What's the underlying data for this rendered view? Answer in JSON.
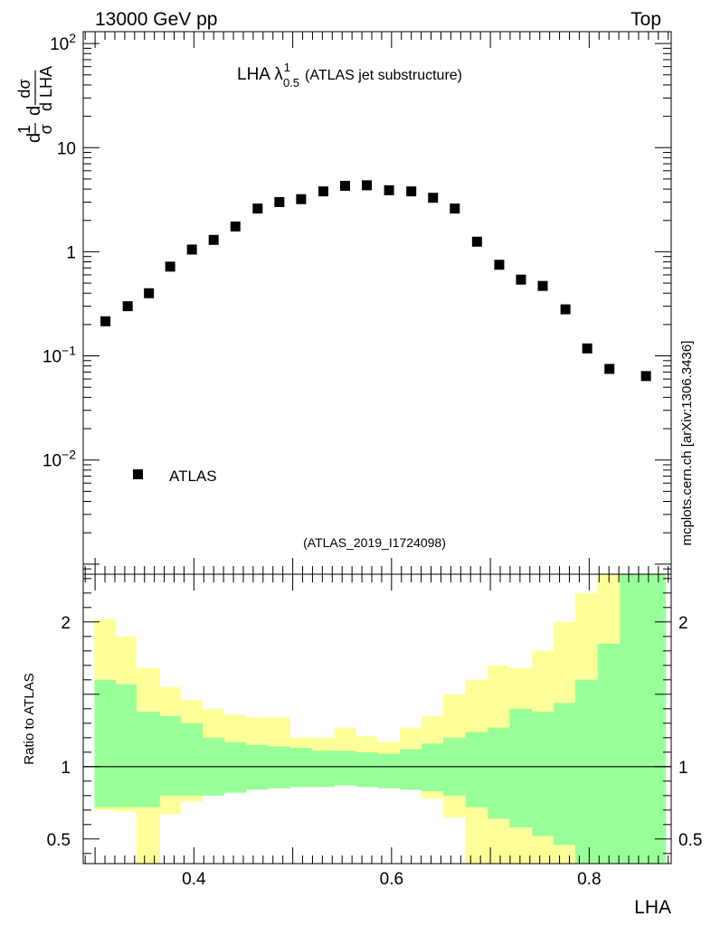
{
  "header": {
    "left_label": "13000 GeV pp",
    "right_label": "Top"
  },
  "side_label": "mcplots.cern.ch [arXiv:1306.3436]",
  "analysis_tag": "(ATLAS_2019_I1724098)",
  "colors": {
    "data_marker": "#000000",
    "band_outer": "#ffff99",
    "band_inner": "#99ff99",
    "tag_text": "#999999"
  },
  "chart_data": [
    {
      "type": "scatter",
      "title": {
        "main": "LHA λ",
        "superscript": "1",
        "subscript": "0.5",
        "suffix": "(ATLAS jet substructure)"
      },
      "ylabel": {
        "frac1_num": "1",
        "frac1_den": "σ",
        "frac2_num": "dσ",
        "frac2_den": "d LHA",
        "prefix": "d"
      },
      "yscale": "log",
      "xlim": [
        0.288,
        0.883
      ],
      "ylim": [
        0.0008,
        130
      ],
      "y_ticks": [
        {
          "value": 0.01,
          "base": "10",
          "exp": "−2"
        },
        {
          "value": 0.1,
          "base": "10",
          "exp": "−1"
        },
        {
          "value": 1,
          "base": "1",
          "exp": ""
        },
        {
          "value": 10,
          "base": "10",
          "exp": ""
        },
        {
          "value": 100,
          "base": "10",
          "exp": "2"
        }
      ],
      "legend": {
        "label": "ATLAS",
        "position": "bottom-left"
      },
      "series": [
        {
          "name": "ATLAS",
          "x": [
            0.3105,
            0.333,
            0.3545,
            0.376,
            0.398,
            0.42,
            0.442,
            0.4645,
            0.4865,
            0.5085,
            0.531,
            0.553,
            0.575,
            0.5975,
            0.62,
            0.642,
            0.664,
            0.6865,
            0.709,
            0.731,
            0.753,
            0.776,
            0.798,
            0.8205,
            0.8575
          ],
          "y": [
            0.215,
            0.3,
            0.4,
            0.72,
            1.05,
            1.3,
            1.75,
            2.6,
            3.0,
            3.2,
            3.8,
            4.3,
            4.35,
            3.9,
            3.8,
            3.3,
            2.6,
            1.25,
            0.75,
            0.54,
            0.47,
            0.28,
            0.118,
            0.075,
            0.064
          ]
        }
      ]
    },
    {
      "type": "area",
      "ylabel": "Ratio to ATLAS",
      "xlabel": "LHA",
      "xlim": [
        0.288,
        0.883
      ],
      "ylim": [
        0.33,
        2.33
      ],
      "x_ticks": [
        "0.4",
        "0.6",
        "0.8"
      ],
      "y_ticks": [
        "0.5",
        "1",
        "2"
      ],
      "reference_line": 1,
      "bin_edges": [
        0.2995,
        0.321,
        0.342,
        0.3655,
        0.387,
        0.409,
        0.431,
        0.453,
        0.4755,
        0.4975,
        0.5195,
        0.5425,
        0.564,
        0.586,
        0.6085,
        0.6305,
        0.6525,
        0.675,
        0.6975,
        0.7195,
        0.7425,
        0.764,
        0.786,
        0.8085,
        0.831,
        0.8775
      ],
      "series": [
        {
          "name": "inner band (green)",
          "lower": [
            0.72,
            0.72,
            0.72,
            0.8,
            0.8,
            0.8,
            0.82,
            0.84,
            0.85,
            0.86,
            0.86,
            0.87,
            0.86,
            0.85,
            0.84,
            0.83,
            0.8,
            0.72,
            0.64,
            0.58,
            0.52,
            0.46,
            0.33,
            0.33,
            0.33
          ],
          "upper": [
            1.6,
            1.57,
            1.38,
            1.35,
            1.3,
            1.2,
            1.17,
            1.15,
            1.14,
            1.13,
            1.11,
            1.11,
            1.1,
            1.09,
            1.12,
            1.16,
            1.2,
            1.24,
            1.27,
            1.4,
            1.38,
            1.44,
            1.6,
            1.85,
            2.33
          ]
        },
        {
          "name": "outer band (yellow)",
          "lower": [
            0.7,
            0.69,
            0.33,
            0.67,
            0.76,
            0.82,
            0.86,
            0.88,
            0.89,
            0.9,
            0.9,
            0.92,
            0.9,
            0.88,
            0.84,
            0.78,
            0.65,
            0.33,
            0.33,
            0.33,
            0.33,
            0.33,
            0.33,
            0.33,
            0.33
          ],
          "upper": [
            2.02,
            1.9,
            1.68,
            1.55,
            1.46,
            1.4,
            1.36,
            1.34,
            1.34,
            1.2,
            1.2,
            1.27,
            1.21,
            1.17,
            1.27,
            1.35,
            1.5,
            1.6,
            1.7,
            1.68,
            1.8,
            2.0,
            2.2,
            2.33,
            2.33
          ]
        }
      ]
    }
  ]
}
